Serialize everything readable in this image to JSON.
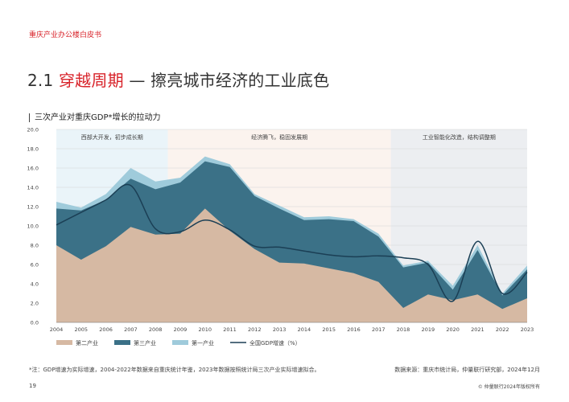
{
  "header": {
    "tag": "重庆产业办公楼白皮书"
  },
  "page": {
    "title_prefix": "2.1 ",
    "title_accent": "穿越周期",
    "title_rest": " — 擦亮城市经济的工业底色",
    "page_number": "19"
  },
  "chart_title": "三次产业对重庆GDP*增长的拉动力",
  "chart_data": {
    "type": "area",
    "stacked": true,
    "categories": [
      "2004",
      "2005",
      "2006",
      "2007",
      "2008",
      "2009",
      "2010",
      "2011",
      "2012",
      "2013",
      "2014",
      "2015",
      "2016",
      "2017",
      "2018",
      "2019",
      "2020",
      "2021",
      "2022",
      "2023"
    ],
    "series": [
      {
        "name": "第二产业",
        "color": "#d6b9a3",
        "values": [
          8.0,
          6.5,
          7.9,
          9.9,
          9.1,
          9.2,
          11.8,
          9.5,
          7.6,
          6.2,
          6.1,
          5.6,
          5.1,
          4.2,
          1.5,
          2.9,
          2.3,
          2.9,
          1.4,
          2.5
        ]
      },
      {
        "name": "第三产业",
        "color": "#3b7187",
        "values": [
          3.8,
          5.1,
          4.8,
          5.0,
          4.7,
          5.3,
          4.9,
          6.6,
          5.5,
          5.6,
          4.5,
          5.1,
          5.4,
          4.7,
          4.2,
          3.3,
          1.1,
          4.6,
          1.4,
          3.0
        ]
      },
      {
        "name": "第一产业",
        "color": "#9fcbdb",
        "values": [
          0.7,
          0.3,
          0.6,
          1.1,
          0.8,
          0.5,
          0.5,
          0.3,
          0.2,
          0.3,
          0.3,
          0.3,
          0.2,
          0.3,
          0.2,
          0.2,
          0.4,
          0.5,
          0.2,
          0.4
        ]
      },
      {
        "name": "全国GDP增速（%）",
        "type": "line",
        "color": "#1b3f55",
        "values": [
          10.1,
          11.4,
          12.7,
          14.2,
          9.7,
          9.4,
          10.6,
          9.6,
          7.9,
          7.8,
          7.4,
          7.0,
          6.8,
          6.9,
          6.7,
          6.0,
          2.2,
          8.4,
          3.0,
          5.2
        ]
      }
    ],
    "ylim": [
      0,
      20
    ],
    "yticks": [
      "0.0",
      "2.0",
      "4.0",
      "6.0",
      "8.0",
      "10.0",
      "12.0",
      "14.0",
      "16.0",
      "18.0",
      "20.0"
    ],
    "grid": true,
    "legend_position": "bottom-left",
    "periods": [
      {
        "label": "西部大开发，初步成长期",
        "start": "2004",
        "end": "2008",
        "color": "#eaf4f9"
      },
      {
        "label": "经济腾飞，稳固发展期",
        "start": "2009",
        "end": "2017",
        "color": "#fbf3ee"
      },
      {
        "label": "工业智能化改造，结构调整期",
        "start": "2018",
        "end": "2023",
        "color": "#eceef1"
      }
    ]
  },
  "footnote": "*注：GDP增速为实际增速，2004-2022年数据来自重庆统计年鉴，2023年数据按照统计局三次产业实际增速拟合。",
  "source": "数据来源：重庆市统计局，仲量联行研究部，2024年12月",
  "copyright": "© 仲量联行2024年版权所有"
}
